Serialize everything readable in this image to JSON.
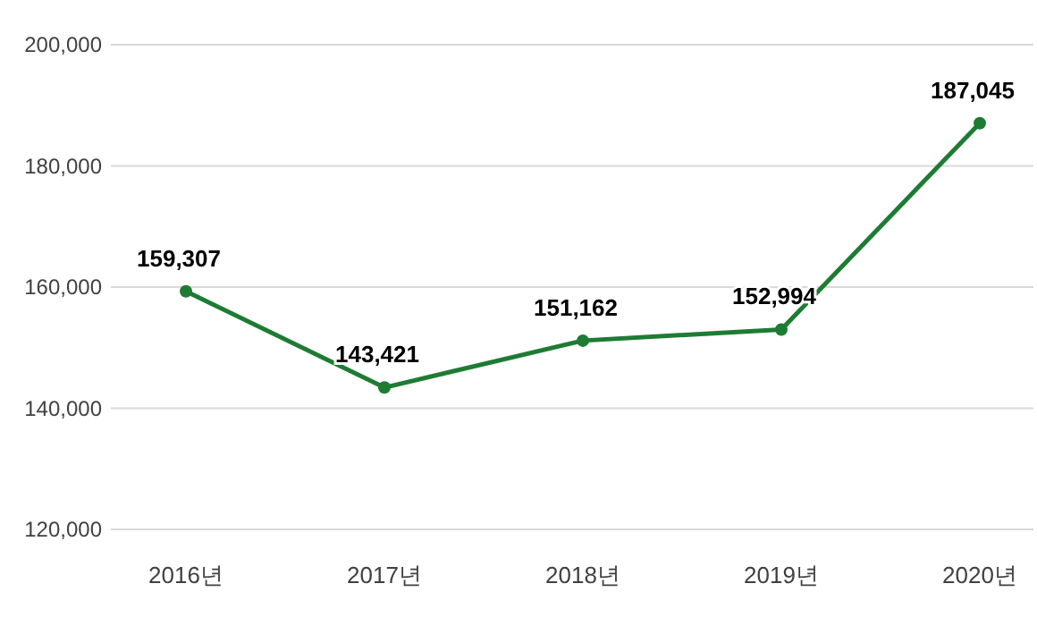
{
  "chart_data": {
    "type": "line",
    "categories": [
      "2016년",
      "2017년",
      "2018년",
      "2019년",
      "2020년"
    ],
    "series": [
      {
        "color": "#1e7b34",
        "values": [
          159307,
          143421,
          151162,
          152994,
          187045
        ],
        "value_labels": [
          "159,307",
          "143,421",
          "151,162",
          "152,994",
          "187,045"
        ]
      }
    ],
    "ylim": [
      120000,
      200000
    ],
    "yticks": [
      {
        "value": 120000,
        "label": "120,000"
      },
      {
        "value": 140000,
        "label": "140,000"
      },
      {
        "value": 160000,
        "label": "160,000"
      },
      {
        "value": 180000,
        "label": "180,000"
      },
      {
        "value": 200000,
        "label": "200,000"
      }
    ],
    "grid": "y",
    "marker": "circle",
    "line_style": "solid"
  }
}
